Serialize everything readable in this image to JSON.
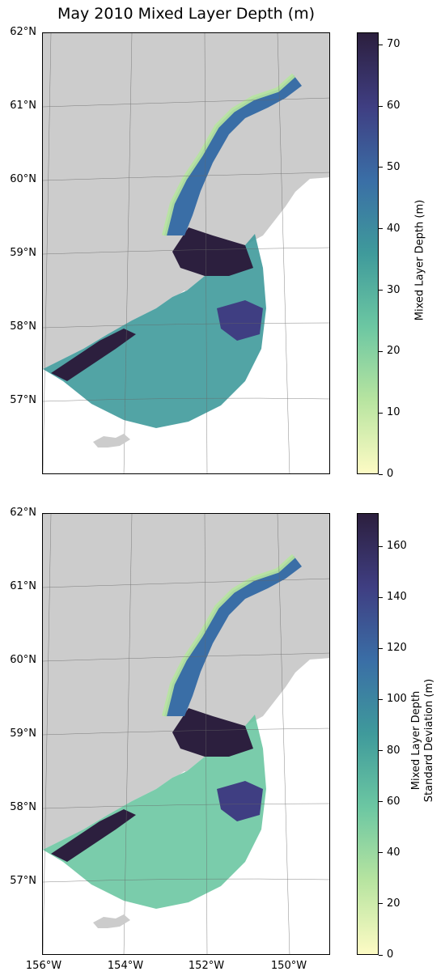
{
  "title": "May 2010 Mixed Layer Depth (m)",
  "colors": {
    "land": "#cccccc",
    "ocean_background": "#ffffff",
    "colormap": [
      "#fdfbc4",
      "#b7e4a0",
      "#6cc7a2",
      "#3f9a9b",
      "#3a6ea6",
      "#3f3e82",
      "#2c1f3e"
    ]
  },
  "axes": {
    "lat_labels": [
      "62°N",
      "61°N",
      "60°N",
      "59°N",
      "58°N",
      "57°N"
    ],
    "lon_labels": [
      "156°W",
      "154°W",
      "152°W",
      "150°W"
    ]
  },
  "panels": [
    {
      "colorbar": {
        "label_lines": [
          "Mixed Layer Depth (m)"
        ],
        "ticks": [
          "0",
          "10",
          "20",
          "30",
          "40",
          "50",
          "60",
          "70"
        ],
        "range": [
          0,
          72
        ]
      }
    },
    {
      "colorbar": {
        "label_lines": [
          "Mixed Layer Depth",
          "Standard Deviation (m)"
        ],
        "ticks": [
          "0",
          "20",
          "40",
          "60",
          "80",
          "100",
          "120",
          "140",
          "160"
        ],
        "range": [
          0,
          173
        ]
      }
    }
  ]
}
